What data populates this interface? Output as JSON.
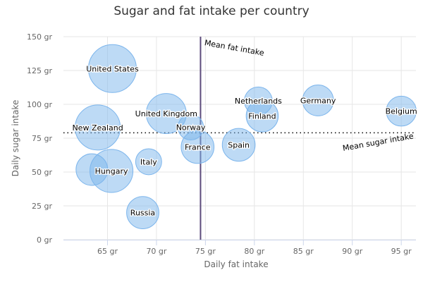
{
  "chart_data": {
    "type": "bubble",
    "title": "Sugar and fat intake per country",
    "xlabel": "Daily fat intake",
    "ylabel": "Daily sugar intake",
    "xlim": [
      60.5,
      96.5
    ],
    "ylim": [
      0,
      150
    ],
    "x_ticks": [
      65,
      70,
      75,
      80,
      85,
      90,
      95
    ],
    "y_ticks": [
      0,
      25,
      50,
      75,
      100,
      125,
      150
    ],
    "x_tick_labels": [
      "65 gr",
      "70 gr",
      "75 gr",
      "80 gr",
      "85 gr",
      "90 gr",
      "95 gr"
    ],
    "y_tick_labels": [
      "0 gr",
      "25 gr",
      "50 gr",
      "75 gr",
      "100 gr",
      "125 gr",
      "150 gr"
    ],
    "bubble_color": "#7cb5ec",
    "reference_lines": [
      {
        "axis": "x",
        "value": 74.5,
        "label": "Mean fat intake",
        "color": "#5c4b7b",
        "style": "solid"
      },
      {
        "axis": "y",
        "value": 79,
        "label": "Mean sugar intake",
        "color": "#000000",
        "style": "dotted"
      }
    ],
    "points": [
      {
        "name": "United States",
        "x": 65.5,
        "y": 126.4,
        "z": 35.3
      },
      {
        "name": "United Kingdom",
        "x": 71,
        "y": 93.2,
        "z": 24.7
      },
      {
        "name": "Netherlands",
        "x": 80.4,
        "y": 102.5,
        "z": 12
      },
      {
        "name": "Germany",
        "x": 86.5,
        "y": 102.9,
        "z": 14.7
      },
      {
        "name": "Belgium",
        "x": 95,
        "y": 95,
        "z": 13.8
      },
      {
        "name": "Finland",
        "x": 80.8,
        "y": 91.5,
        "z": 15.8
      },
      {
        "name": "New Zealand",
        "x": 64,
        "y": 82.9,
        "z": 31.3
      },
      {
        "name": "Norway",
        "x": 73.5,
        "y": 83.1,
        "z": 10
      },
      {
        "name": "France",
        "x": 74.2,
        "y": 68.5,
        "z": 16.6
      },
      {
        "name": "Spain",
        "x": 78.4,
        "y": 70.1,
        "z": 16.6
      },
      {
        "name": "Italy",
        "x": 69.2,
        "y": 57.6,
        "z": 10.4
      },
      {
        "name": "Hungary",
        "x": 65.4,
        "y": 50.8,
        "z": 28.5
      },
      {
        "name": "",
        "x": 63.4,
        "y": 51.8,
        "z": 15.4
      },
      {
        "name": "Russia",
        "x": 68.6,
        "y": 20,
        "z": 16
      }
    ]
  }
}
